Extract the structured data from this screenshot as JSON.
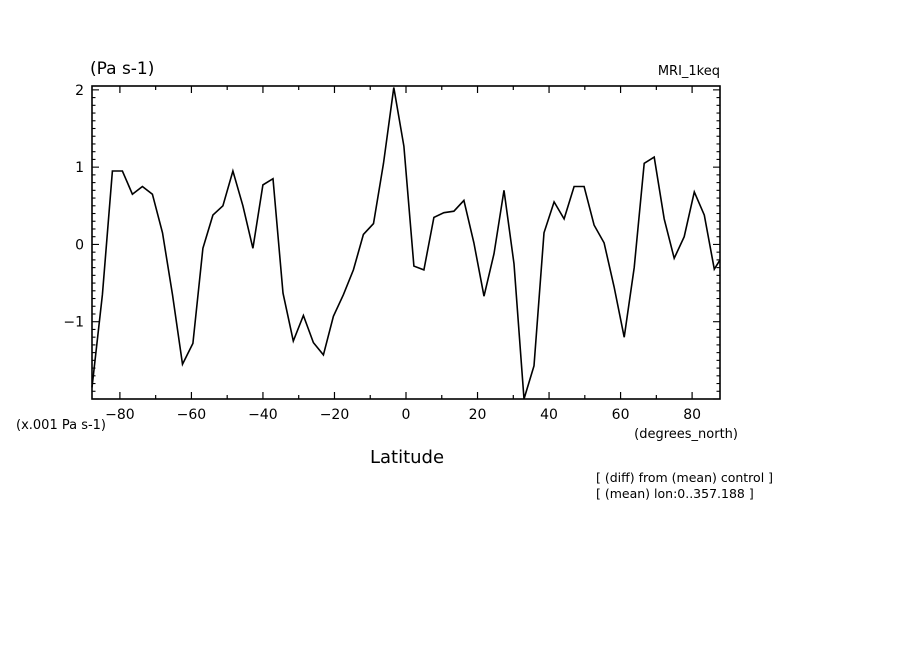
{
  "chart_data": {
    "type": "line",
    "unit_label": "(Pa s-1)",
    "model_label": "MRI_1keq",
    "scale_note": "(x.001 Pa s-1)",
    "xlabel": "Latitude",
    "xunit": "(degrees_north)",
    "notes": [
      "[ (diff) from (mean) control ]",
      "[ (mean) lon:0..357.188 ]"
    ],
    "xlim": [
      -87.8,
      87.8
    ],
    "ylim": [
      -2,
      2.05
    ],
    "xticks": [
      -80,
      -60,
      -40,
      -20,
      0,
      20,
      40,
      60,
      80
    ],
    "xtick_labels": [
      "−80",
      "−60",
      "−40",
      "−20",
      "0",
      "20",
      "40",
      "60",
      "80"
    ],
    "yticks": [
      -1,
      0,
      1,
      2
    ],
    "ytick_labels": [
      "−1",
      "0",
      "1",
      "2"
    ],
    "series": [
      {
        "x": [
          -87.8,
          -84.9,
          -82.1,
          -79.3,
          -76.5,
          -73.7,
          -70.9,
          -68.1,
          -65.3,
          -62.5,
          -59.6,
          -56.8,
          -54.0,
          -51.2,
          -48.4,
          -45.6,
          -42.8,
          -40.0,
          -37.2,
          -34.4,
          -31.5,
          -28.7,
          -25.9,
          -23.1,
          -20.3,
          -17.5,
          -14.7,
          -11.9,
          -9.1,
          -6.3,
          -3.4,
          -0.6,
          2.2,
          5.0,
          7.8,
          10.6,
          13.4,
          16.2,
          19.0,
          21.8,
          24.6,
          27.4,
          30.2,
          33.0,
          35.8,
          38.6,
          41.4,
          44.2,
          47.0,
          49.8,
          52.6,
          55.4,
          58.2,
          61.0,
          63.8,
          66.6,
          69.4,
          72.2,
          75.0,
          77.8,
          80.6,
          83.4,
          86.2,
          87.8
        ],
        "y": [
          -1.85,
          -0.65,
          0.95,
          0.95,
          0.65,
          0.75,
          0.65,
          0.15,
          -0.65,
          -1.55,
          -1.28,
          -0.05,
          0.38,
          0.5,
          0.95,
          0.5,
          -0.05,
          0.77,
          0.85,
          -0.63,
          -1.25,
          -0.92,
          -1.27,
          -1.43,
          -0.93,
          -0.65,
          -0.33,
          0.13,
          0.27,
          1.05,
          2.03,
          1.27,
          -0.28,
          -0.33,
          0.35,
          0.41,
          0.43,
          0.57,
          0.02,
          -0.67,
          -0.12,
          0.7,
          -0.25,
          -2.0,
          -1.57,
          0.15,
          0.55,
          0.33,
          0.75,
          0.75,
          0.25,
          0.02,
          -0.55,
          -1.2,
          -0.3,
          1.05,
          1.13,
          0.33,
          -0.18,
          0.1,
          0.68,
          0.38,
          -0.32,
          -0.2
        ]
      }
    ]
  }
}
